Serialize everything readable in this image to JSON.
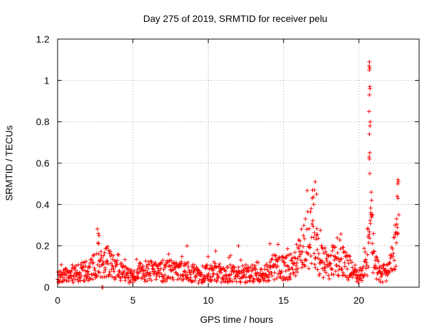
{
  "chart_data": {
    "type": "scatter",
    "title": "Day 275 of 2019, SRMTID for receiver pelu",
    "xlabel": "GPS time / hours",
    "ylabel": "SRMTID / TECUs",
    "xlim": [
      0,
      24
    ],
    "ylim": [
      0,
      1.2
    ],
    "xticks": [
      0,
      5,
      10,
      15,
      20
    ],
    "xtick_labels": [
      "0",
      "5",
      "10",
      "15",
      "20"
    ],
    "yticks": [
      0,
      0.2,
      0.4,
      0.6,
      0.8,
      1.0,
      1.2
    ],
    "ytick_labels": [
      "0",
      "0.2",
      "0.4",
      "0.6",
      "0.8",
      "1",
      "1.2"
    ],
    "grid": true,
    "marker": "+",
    "color": "#ff0000",
    "series": [
      {
        "name": "SRMTID",
        "profile": [
          [
            0,
            0.05
          ],
          [
            0.5,
            0.055
          ],
          [
            1,
            0.06
          ],
          [
            1.5,
            0.07
          ],
          [
            2,
            0.08
          ],
          [
            2.5,
            0.1
          ],
          [
            2.7,
            0.15
          ],
          [
            3,
            0.1
          ],
          [
            3.3,
            0.13
          ],
          [
            3.5,
            0.11
          ],
          [
            4,
            0.08
          ],
          [
            4.5,
            0.06
          ],
          [
            5,
            0.055
          ],
          [
            5.5,
            0.07
          ],
          [
            6,
            0.08
          ],
          [
            6.5,
            0.07
          ],
          [
            7,
            0.075
          ],
          [
            7.5,
            0.08
          ],
          [
            8,
            0.07
          ],
          [
            8.5,
            0.085
          ],
          [
            9,
            0.07
          ],
          [
            9.5,
            0.05
          ],
          [
            10,
            0.07
          ],
          [
            10.5,
            0.08
          ],
          [
            11,
            0.06
          ],
          [
            11.5,
            0.07
          ],
          [
            12,
            0.06
          ],
          [
            12.5,
            0.065
          ],
          [
            13,
            0.07
          ],
          [
            13.5,
            0.06
          ],
          [
            14,
            0.07
          ],
          [
            14.5,
            0.1
          ],
          [
            15,
            0.09
          ],
          [
            15.5,
            0.1
          ],
          [
            16,
            0.14
          ],
          [
            16.5,
            0.22
          ],
          [
            17,
            0.3
          ],
          [
            17.3,
            0.15
          ],
          [
            17.6,
            0.12
          ],
          [
            18,
            0.1
          ],
          [
            18.5,
            0.13
          ],
          [
            19,
            0.12
          ],
          [
            19.5,
            0.08
          ],
          [
            20,
            0.05
          ],
          [
            20.3,
            0.08
          ],
          [
            20.6,
            0.15
          ],
          [
            20.8,
            0.25
          ],
          [
            21,
            0.12
          ],
          [
            21.5,
            0.06
          ],
          [
            22,
            0.08
          ],
          [
            22.3,
            0.15
          ],
          [
            22.6,
            0.2
          ]
        ],
        "spikes": [
          [
            2.7,
            0.26
          ],
          [
            2.75,
            0.25
          ],
          [
            2.72,
            0.21
          ],
          [
            8.6,
            0.2
          ],
          [
            12.0,
            0.2
          ],
          [
            14.1,
            0.21
          ],
          [
            17.1,
            0.51
          ],
          [
            17.05,
            0.47
          ],
          [
            16.9,
            0.43
          ],
          [
            17.2,
            0.45
          ],
          [
            17.0,
            0.4
          ],
          [
            20.7,
            1.09
          ],
          [
            20.68,
            1.07
          ],
          [
            20.72,
            1.06
          ],
          [
            20.7,
            1.05
          ],
          [
            20.72,
            0.97
          ],
          [
            20.74,
            0.96
          ],
          [
            20.7,
            0.93
          ],
          [
            20.68,
            0.85
          ],
          [
            20.76,
            0.8
          ],
          [
            20.74,
            0.78
          ],
          [
            20.7,
            0.74
          ],
          [
            20.72,
            0.65
          ],
          [
            20.68,
            0.63
          ],
          [
            20.7,
            0.62
          ],
          [
            20.72,
            0.55
          ],
          [
            20.82,
            0.46
          ],
          [
            20.85,
            0.42
          ],
          [
            20.8,
            0.36
          ],
          [
            20.9,
            0.35
          ],
          [
            20.6,
            0.28
          ],
          [
            22.6,
            0.52
          ],
          [
            22.58,
            0.5
          ],
          [
            22.63,
            0.51
          ],
          [
            22.55,
            0.44
          ],
          [
            22.6,
            0.43
          ],
          [
            22.65,
            0.35
          ],
          [
            22.5,
            0.33
          ],
          [
            22.4,
            0.3
          ],
          [
            2.95,
            0.0
          ],
          [
            3.0,
            0.0
          ]
        ]
      }
    ]
  }
}
